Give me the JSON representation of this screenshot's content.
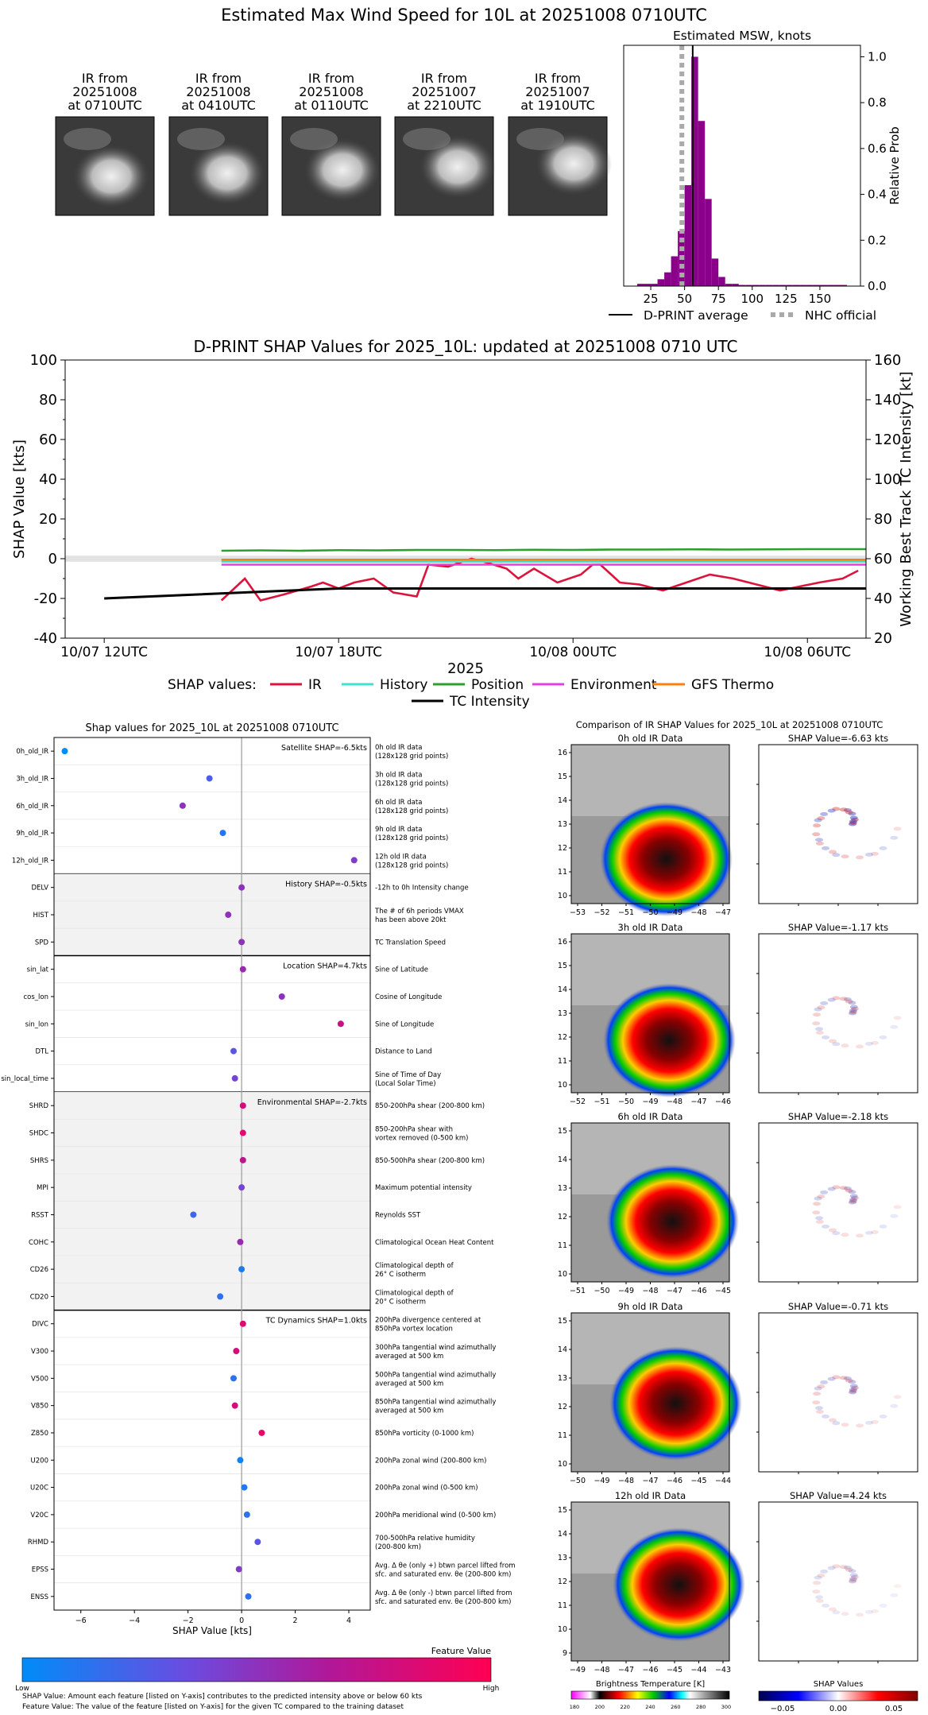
{
  "header": {
    "title": "Estimated Max Wind Speed for 10L at 20251008 0710UTC"
  },
  "thumbnails": [
    {
      "l1": "IR from",
      "l2": "20251008",
      "l3": "at 0710UTC"
    },
    {
      "l1": "IR from",
      "l2": "20251008",
      "l3": "at 0410UTC"
    },
    {
      "l1": "IR from",
      "l2": "20251008",
      "l3": "at 0110UTC"
    },
    {
      "l1": "IR from",
      "l2": "20251007",
      "l3": "at 2210UTC"
    },
    {
      "l1": "IR from",
      "l2": "20251007",
      "l3": "at 1910UTC"
    }
  ],
  "colors": {
    "purple": "#8b008b",
    "ir": "#dc143c",
    "history": "#40e0d0",
    "position": "#2ca02c",
    "environment": "#e040e0",
    "gfs": "#ff7f0e",
    "black": "#000000",
    "gray": "#aaaaaa"
  },
  "chart_data": [
    {
      "type": "bar",
      "title": "Estimated MSW, knots",
      "ylabel": "Relative Prob",
      "xlim": [
        5,
        180
      ],
      "ylim": [
        0,
        1.05
      ],
      "xticks": [
        "25",
        "50",
        "75",
        "100",
        "125",
        "150"
      ],
      "yticks": [
        "0.0",
        "0.2",
        "0.4",
        "0.6",
        "0.8",
        "1.0"
      ],
      "bin_width": 5,
      "bins_start": [
        15,
        20,
        25,
        30,
        35,
        40,
        45,
        50,
        55,
        60,
        65,
        70,
        75,
        80,
        85,
        90,
        95,
        100,
        105,
        110,
        115,
        120,
        125,
        130,
        135,
        140,
        145,
        150,
        155,
        160,
        165
      ],
      "values": [
        0.01,
        0.01,
        0.01,
        0.03,
        0.06,
        0.13,
        0.24,
        0.44,
        1.0,
        0.72,
        0.38,
        0.12,
        0.04,
        0.01,
        0.01,
        0.005,
        0.005,
        0.005,
        0.005,
        0.005,
        0.005,
        0.005,
        0.005,
        0.005,
        0.005,
        0.005,
        0.005,
        0.005,
        0.005,
        0.005,
        0.005
      ],
      "dprint_average": 56,
      "nhc_official": 48,
      "legend": [
        "D-PRINT average",
        "NHC official"
      ]
    },
    {
      "type": "line",
      "title": "D-PRINT SHAP Values for 2025_10L: updated at 20251008 0710 UTC",
      "ylabel": "SHAP Value [kts]",
      "y2label": "Working Best Track TC Intensity [kt]",
      "xlabel": "2025",
      "ylim": [
        -40,
        100
      ],
      "y2lim": [
        20,
        160
      ],
      "yticks": [
        "-40",
        "-20",
        "0",
        "20",
        "40",
        "60",
        "80",
        "100"
      ],
      "y2ticks": [
        "20",
        "40",
        "60",
        "80",
        "100",
        "120",
        "140",
        "160"
      ],
      "xlim_hours": [
        -1,
        19.5
      ],
      "xticks": [
        {
          "h": 0,
          "label": "10/07 12UTC"
        },
        {
          "h": 6,
          "label": "10/07 18UTC"
        },
        {
          "h": 12,
          "label": "10/08 00UTC"
        },
        {
          "h": 18,
          "label": "10/08 06UTC"
        }
      ],
      "legend_prefix": "SHAP values:",
      "legend": [
        "IR",
        "History",
        "Position",
        "Environment",
        "GFS Thermo",
        "TC Intensity"
      ],
      "series": [
        {
          "name": "IR",
          "x": [
            3,
            3.6,
            4.0,
            4.6,
            5.3,
            5.6,
            6.0,
            6.4,
            6.9,
            7.4,
            8.0,
            8.3,
            8.8,
            9.4,
            9.8,
            10.3,
            10.6,
            11.0,
            11.6,
            12.2,
            12.5,
            12.7,
            13.2,
            13.7,
            14.3,
            14.9,
            15.5,
            16.1,
            16.7,
            17.3,
            17.8,
            18.3,
            18.9,
            19.3
          ],
          "y": [
            -21,
            -10,
            -21,
            -18,
            -14,
            -12,
            -15,
            -12,
            -10,
            -17,
            -19,
            -3,
            -4,
            0,
            -2,
            -5,
            -10,
            -5,
            -12,
            -8,
            -3,
            -3,
            -12,
            -13,
            -16,
            -12,
            -8,
            -10,
            -13,
            -16,
            -14,
            -12,
            -10,
            -6
          ]
        },
        {
          "name": "History",
          "x": [
            3,
            19.5
          ],
          "y": [
            -1.5,
            -1.5
          ]
        },
        {
          "name": "Position",
          "x": [
            3,
            4,
            5,
            6,
            7,
            8,
            9,
            10,
            11,
            12,
            13,
            14,
            15,
            16,
            17,
            18,
            19.5
          ],
          "y": [
            4,
            4.2,
            4.0,
            4.3,
            4.2,
            4.4,
            4.4,
            4.3,
            4.5,
            4.4,
            4.6,
            4.6,
            4.7,
            4.6,
            4.7,
            4.8,
            4.8
          ]
        },
        {
          "name": "Environment",
          "x": [
            3,
            19.5
          ],
          "y": [
            -3,
            -3
          ]
        },
        {
          "name": "GFS Thermo",
          "x": [
            3,
            19.5
          ],
          "y": [
            -0.5,
            -0.5
          ]
        },
        {
          "name": "TC Intensity",
          "axis": "y2",
          "x": [
            0,
            6,
            12,
            18,
            19.5
          ],
          "y": [
            40,
            45,
            45,
            45,
            45
          ]
        }
      ]
    },
    {
      "type": "scatter",
      "title": "Shap values for 2025_10L at 20251008 0710UTC",
      "xlabel": "SHAP Value [kts]",
      "xlim": [
        -7,
        4.8
      ],
      "xticks": [
        -6,
        -4,
        -2,
        0,
        2,
        4
      ],
      "xtick_labels": [
        "−6",
        "−4",
        "−2",
        "0",
        "2",
        "4"
      ],
      "groups": [
        {
          "label": "Satellite SHAP=-6.5kts",
          "shaded": false,
          "features": [
            {
              "name": "0h_old_IR",
              "desc1": "0h old IR data",
              "desc2": "(128x128 grid points)",
              "shap": -6.6,
              "fv": 0.0
            },
            {
              "name": "3h_old_IR",
              "desc1": "3h old IR data",
              "desc2": "(128x128 grid points)",
              "shap": -1.2,
              "fv": 0.25
            },
            {
              "name": "6h_old_IR",
              "desc1": "6h old IR data",
              "desc2": "(128x128 grid points)",
              "shap": -2.2,
              "fv": 0.5
            },
            {
              "name": "9h_old_IR",
              "desc1": "9h old IR data",
              "desc2": "(128x128 grid points)",
              "shap": -0.7,
              "fv": 0.12
            },
            {
              "name": "12h_old_IR",
              "desc1": "12h old IR data",
              "desc2": "(128x128 grid points)",
              "shap": 4.2,
              "fv": 0.45
            }
          ]
        },
        {
          "label": "History SHAP=-0.5kts",
          "shaded": true,
          "features": [
            {
              "name": "DELV",
              "desc1": "-12h to 0h Intensity change",
              "desc2": "",
              "shap": 0.0,
              "fv": 0.5
            },
            {
              "name": "HIST",
              "desc1": "The # of 6h periods VMAX",
              "desc2": "has been above 20kt",
              "shap": -0.5,
              "fv": 0.5
            },
            {
              "name": "SPD",
              "desc1": "TC Translation Speed",
              "desc2": "",
              "shap": 0.0,
              "fv": 0.5
            }
          ]
        },
        {
          "label": "Location SHAP=4.7kts",
          "shaded": false,
          "features": [
            {
              "name": "sin_lat",
              "desc1": "Sine of Latitude",
              "desc2": "",
              "shap": 0.05,
              "fv": 0.55
            },
            {
              "name": "cos_lon",
              "desc1": "Cosine of Longitude",
              "desc2": "",
              "shap": 1.5,
              "fv": 0.5
            },
            {
              "name": "sin_lon",
              "desc1": "Sine of Longitude",
              "desc2": "",
              "shap": 3.7,
              "fv": 0.75
            },
            {
              "name": "DTL",
              "desc1": "Distance to Land",
              "desc2": "",
              "shap": -0.3,
              "fv": 0.3
            },
            {
              "name": "sin_local_time",
              "desc1": "Sine of Time of Day",
              "desc2": "(Local Solar Time)",
              "shap": -0.25,
              "fv": 0.4
            }
          ]
        },
        {
          "label": "Environmental SHAP=-2.7kts",
          "shaded": true,
          "features": [
            {
              "name": "SHRD",
              "desc1": "850-200hPa shear (200-800 km)",
              "desc2": "",
              "shap": 0.05,
              "fv": 0.8
            },
            {
              "name": "SHDC",
              "desc1": "850-200hPa shear with",
              "desc2": "vortex removed (0-500 km)",
              "shap": 0.05,
              "fv": 0.85
            },
            {
              "name": "SHRS",
              "desc1": "850-500hPa shear (200-800 km)",
              "desc2": "",
              "shap": 0.05,
              "fv": 0.7
            },
            {
              "name": "MPI",
              "desc1": "Maximum potential intensity",
              "desc2": "",
              "shap": 0.0,
              "fv": 0.4
            },
            {
              "name": "RSST",
              "desc1": "Reynolds SST",
              "desc2": "",
              "shap": -1.8,
              "fv": 0.2
            },
            {
              "name": "COHC",
              "desc1": "Climatological Ocean Heat Content",
              "desc2": "",
              "shap": -0.05,
              "fv": 0.55
            },
            {
              "name": "CD26",
              "desc1": "Climatological depth of",
              "desc2": "26° C isotherm",
              "shap": 0.0,
              "fv": 0.1
            },
            {
              "name": "CD20",
              "desc1": "Climatological depth of",
              "desc2": "20° C isotherm",
              "shap": -0.8,
              "fv": 0.15
            }
          ]
        },
        {
          "label": "TC Dynamics SHAP=1.0kts",
          "shaded": false,
          "features": [
            {
              "name": "DIVC",
              "desc1": "200hPa divergence centered at",
              "desc2": "850hPa vortex location",
              "shap": 0.05,
              "fv": 0.85
            },
            {
              "name": "V300",
              "desc1": "300hPa tangential wind azimuthally",
              "desc2": "averaged at 500 km",
              "shap": -0.2,
              "fv": 0.8
            },
            {
              "name": "V500",
              "desc1": "500hPa tangential wind azimuthally",
              "desc2": "averaged at 500 km",
              "shap": -0.3,
              "fv": 0.15
            },
            {
              "name": "V850",
              "desc1": "850hPa tangential wind azimuthally",
              "desc2": "averaged at 500 km",
              "shap": -0.25,
              "fv": 0.8
            },
            {
              "name": "Z850",
              "desc1": "850hPa vorticity (0-1000 km)",
              "desc2": "",
              "shap": 0.75,
              "fv": 0.9
            },
            {
              "name": "U200",
              "desc1": "200hPa zonal wind (200-800 km)",
              "desc2": "",
              "shap": -0.05,
              "fv": 0.05
            },
            {
              "name": "U20C",
              "desc1": "200hPa zonal wind (0-500 km)",
              "desc2": "",
              "shap": 0.1,
              "fv": 0.1
            },
            {
              "name": "V20C",
              "desc1": "200hPa meridional wind (0-500 km)",
              "desc2": "",
              "shap": 0.2,
              "fv": 0.15
            },
            {
              "name": "RHMD",
              "desc1": "700-500hPa relative humidity",
              "desc2": "(200-800 km)",
              "shap": 0.6,
              "fv": 0.3
            },
            {
              "name": "EPSS",
              "desc1": "Avg. Δ θe (only +) btwn parcel lifted from",
              "desc2": "sfc. and saturated env. θe (200-800 km)",
              "shap": -0.1,
              "fv": 0.45
            },
            {
              "name": "ENSS",
              "desc1": "Avg. Δ θe (only -) btwn parcel lifted from",
              "desc2": "sfc. and saturated env. θe (200-800 km)",
              "shap": 0.25,
              "fv": 0.15
            }
          ]
        }
      ]
    }
  ],
  "colorbar": {
    "title": "Feature Value",
    "low": "Low",
    "high": "High"
  },
  "footnotes": {
    "line1": "SHAP Value: Amount each feature [listed on Y-axis] contributes to the predicted intensity above or below 60 kts",
    "line2": "Feature Value: The value of the feature [listed on Y-axis] for the given TC compared to the training dataset"
  },
  "ir_compare": {
    "title": "Comparison of IR SHAP Values for 2025_10L at 20251008 0710UTC",
    "rows": [
      {
        "left_title": "0h old IR Data",
        "right_title": "SHAP Value=-6.63 kts",
        "xticks": [
          "−53",
          "−52",
          "−51",
          "−50",
          "−49",
          "−48",
          "−47"
        ],
        "yticks": [
          "16",
          "15",
          "14",
          "13",
          "12",
          "11",
          "10"
        ]
      },
      {
        "left_title": "3h old IR Data",
        "right_title": "SHAP Value=-1.17 kts",
        "xticks": [
          "−52",
          "−51",
          "−50",
          "−49",
          "−48",
          "−47",
          "−46"
        ],
        "yticks": [
          "16",
          "15",
          "14",
          "13",
          "12",
          "11",
          "10"
        ]
      },
      {
        "left_title": "6h old IR Data",
        "right_title": "SHAP Value=-2.18 kts",
        "xticks": [
          "−51",
          "−50",
          "−49",
          "−48",
          "−47",
          "−46",
          "−45"
        ],
        "yticks": [
          "15",
          "14",
          "13",
          "12",
          "11",
          "10"
        ]
      },
      {
        "left_title": "9h old IR Data",
        "right_title": "SHAP Value=-0.71 kts",
        "xticks": [
          "−50",
          "−49",
          "−48",
          "−47",
          "−46",
          "−45",
          "−44"
        ],
        "yticks": [
          "15",
          "14",
          "13",
          "12",
          "11",
          "10"
        ]
      },
      {
        "left_title": "12h old IR Data",
        "right_title": "SHAP Value=4.24 kts",
        "xticks": [
          "−49",
          "−48",
          "−47",
          "−46",
          "−45",
          "−44",
          "−43"
        ],
        "yticks": [
          "15",
          "14",
          "13",
          "12",
          "11",
          "10",
          "9"
        ]
      }
    ],
    "bt_label": "Brightness Temperature [K]",
    "bt_ticks": [
      "180",
      "200",
      "220",
      "240",
      "260",
      "280",
      "300"
    ],
    "sv_label": "SHAP Values",
    "sv_ticks": [
      "−0.05",
      "0.00",
      "0.05"
    ]
  }
}
